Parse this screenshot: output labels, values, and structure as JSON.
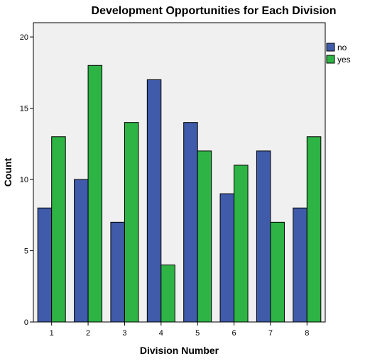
{
  "chart_data": {
    "type": "bar",
    "title": "Development Opportunities for Each Division",
    "xlabel": "Division Number",
    "ylabel": "Count",
    "categories": [
      "1",
      "2",
      "3",
      "4",
      "5",
      "6",
      "7",
      "8"
    ],
    "series": [
      {
        "name": "no",
        "color": "#3f5ba9",
        "values": [
          8,
          10,
          7,
          17,
          14,
          9,
          12,
          8
        ]
      },
      {
        "name": "yes",
        "color": "#2db445",
        "values": [
          13,
          18,
          14,
          4,
          12,
          11,
          7,
          13
        ]
      }
    ],
    "ylim": [
      0,
      21
    ],
    "yticks": [
      0,
      5,
      10,
      15,
      20
    ],
    "plot_background": "#f0f0f0",
    "grid": false,
    "legend_position": "right"
  }
}
